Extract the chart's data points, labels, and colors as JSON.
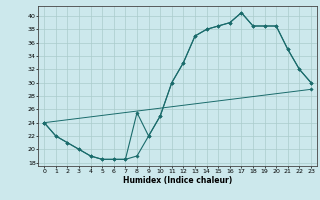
{
  "xlabel": "Humidex (Indice chaleur)",
  "bg_color": "#cce8ec",
  "grid_color": "#aacccc",
  "line_color": "#1a6b6b",
  "xlim": [
    -0.5,
    23.5
  ],
  "ylim": [
    17.5,
    41.5
  ],
  "xticks": [
    0,
    1,
    2,
    3,
    4,
    5,
    6,
    7,
    8,
    9,
    10,
    11,
    12,
    13,
    14,
    15,
    16,
    17,
    18,
    19,
    20,
    21,
    22,
    23
  ],
  "yticks": [
    18,
    20,
    22,
    24,
    26,
    28,
    30,
    32,
    34,
    36,
    38,
    40
  ],
  "curve1_x": [
    0,
    1,
    2,
    3,
    4,
    5,
    6,
    7,
    8,
    9,
    10,
    11,
    12,
    13,
    14,
    15,
    16,
    17,
    18,
    19,
    20,
    21,
    22,
    23
  ],
  "curve1_y": [
    24,
    22,
    21,
    20,
    19,
    18.5,
    18.5,
    18.5,
    19,
    22,
    25,
    30,
    33,
    37,
    38,
    38.5,
    39,
    40.5,
    38.5,
    38.5,
    38.5,
    35,
    32,
    30
  ],
  "curve2_x": [
    0,
    1,
    2,
    3,
    4,
    5,
    6,
    7,
    8,
    9,
    10,
    11,
    12,
    13,
    14,
    15,
    16,
    17,
    18,
    19,
    20,
    21,
    22,
    23
  ],
  "curve2_y": [
    24,
    22,
    21,
    20,
    19,
    18.5,
    18.5,
    18.5,
    25.5,
    22,
    25,
    30,
    33,
    37,
    38,
    38.5,
    39,
    40.5,
    38.5,
    38.5,
    38.5,
    35,
    32,
    30
  ],
  "line3_x": [
    0,
    23
  ],
  "line3_y": [
    24,
    29
  ]
}
